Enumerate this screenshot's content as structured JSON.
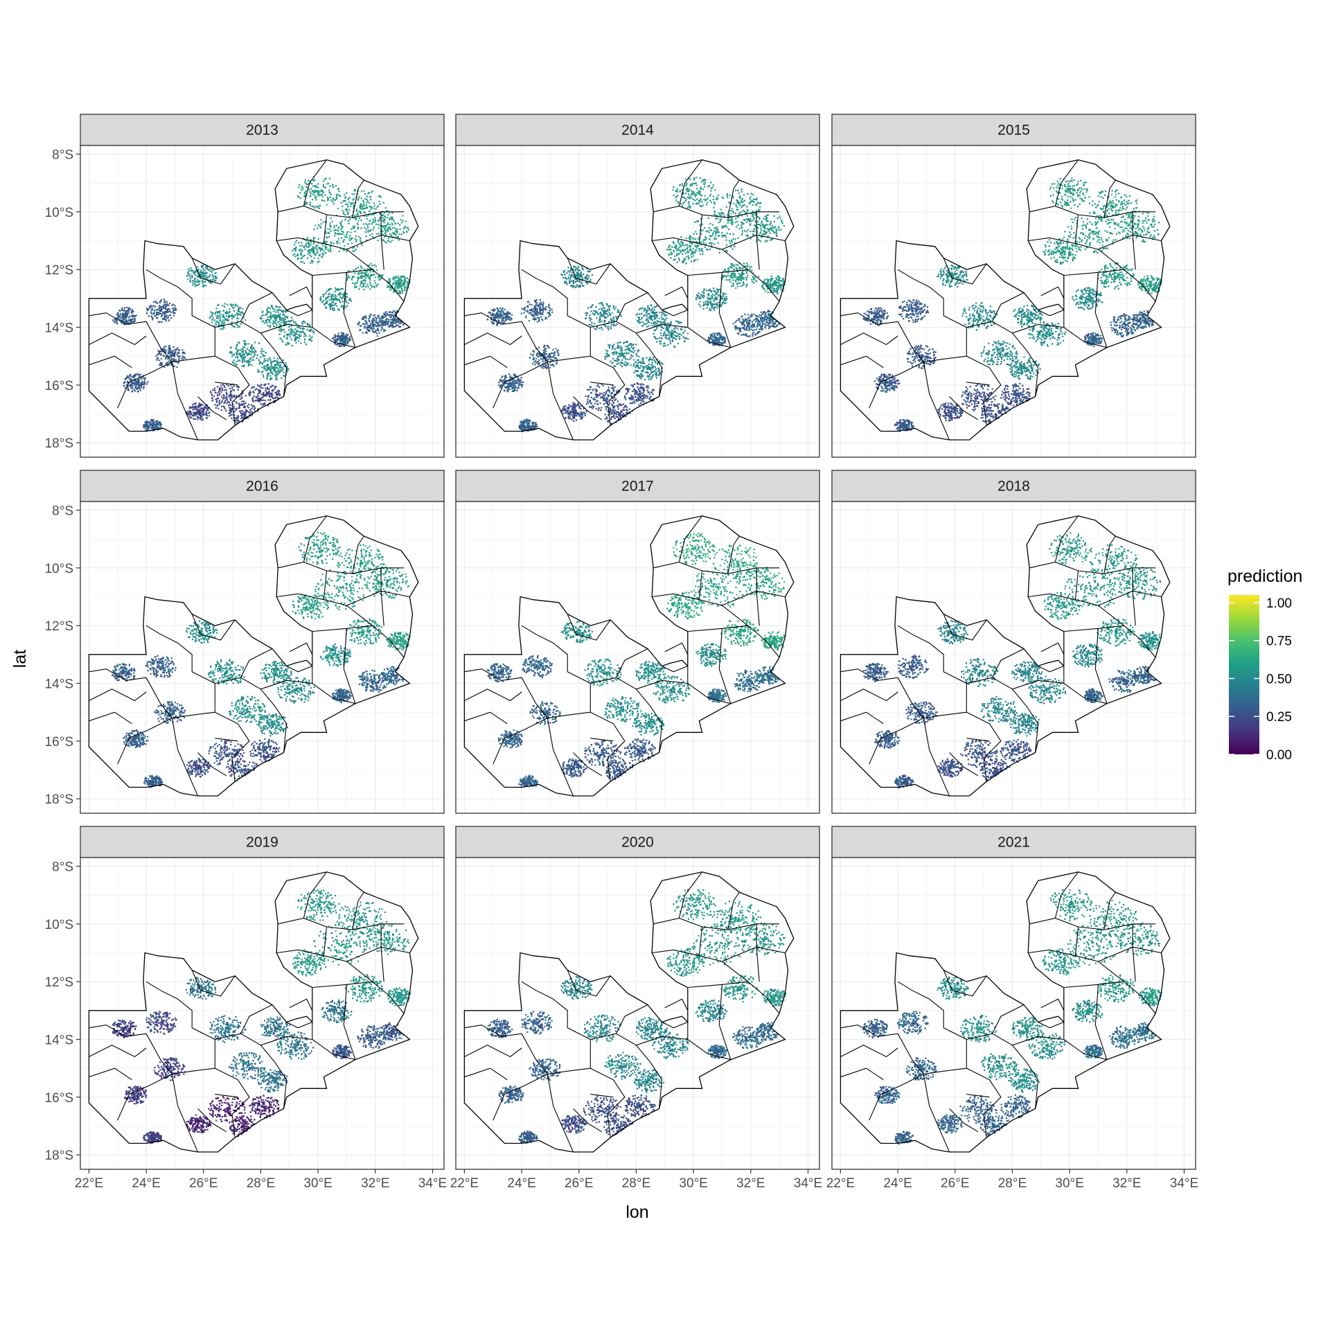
{
  "chart_data": {
    "type": "map",
    "facet_by": "year",
    "xlabel": "lon",
    "ylabel": "lat",
    "x_ticks": [
      "22°E",
      "24°E",
      "26°E",
      "28°E",
      "30°E",
      "32°E",
      "34°E"
    ],
    "y_ticks": [
      "8°S",
      "10°S",
      "12°S",
      "14°S",
      "16°S",
      "18°S"
    ],
    "x_tick_values": [
      22,
      24,
      26,
      28,
      30,
      32,
      34
    ],
    "y_tick_values": [
      -8,
      -10,
      -12,
      -14,
      -16,
      -18
    ],
    "xlim": [
      21.7,
      34.4
    ],
    "ylim": [
      -18.5,
      -7.7
    ],
    "grid": true,
    "legend": {
      "title": "prediction",
      "position": "right",
      "ticks": [
        "0.00",
        "0.25",
        "0.50",
        "0.75",
        "1.00"
      ],
      "tick_values": [
        0,
        0.25,
        0.5,
        0.75,
        1.0
      ],
      "range": [
        0,
        1.05
      ],
      "palette": [
        "#440154",
        "#46337E",
        "#365C8D",
        "#277F8E",
        "#1FA187",
        "#4AC16D",
        "#9FDA3A",
        "#FDE725"
      ]
    },
    "panels": [
      {
        "label": "2013",
        "year": 2013,
        "north": 0.58,
        "central": 0.52,
        "east": 0.32,
        "south": 0.22,
        "west": 0.3
      },
      {
        "label": "2014",
        "year": 2014,
        "north": 0.56,
        "central": 0.48,
        "east": 0.34,
        "south": 0.25,
        "west": 0.32
      },
      {
        "label": "2015",
        "year": 2015,
        "north": 0.58,
        "central": 0.5,
        "east": 0.33,
        "south": 0.25,
        "west": 0.3
      },
      {
        "label": "2016",
        "year": 2016,
        "north": 0.58,
        "central": 0.52,
        "east": 0.34,
        "south": 0.26,
        "west": 0.32
      },
      {
        "label": "2017",
        "year": 2017,
        "north": 0.62,
        "central": 0.52,
        "east": 0.38,
        "south": 0.28,
        "west": 0.34
      },
      {
        "label": "2018",
        "year": 2018,
        "north": 0.56,
        "central": 0.48,
        "east": 0.33,
        "south": 0.26,
        "west": 0.3
      },
      {
        "label": "2019",
        "year": 2019,
        "north": 0.56,
        "central": 0.4,
        "east": 0.28,
        "south": 0.1,
        "west": 0.2
      },
      {
        "label": "2020",
        "year": 2020,
        "north": 0.56,
        "central": 0.48,
        "east": 0.36,
        "south": 0.24,
        "west": 0.32
      },
      {
        "label": "2021",
        "year": 2021,
        "north": 0.56,
        "central": 0.52,
        "east": 0.38,
        "south": 0.33,
        "west": 0.34
      }
    ]
  }
}
